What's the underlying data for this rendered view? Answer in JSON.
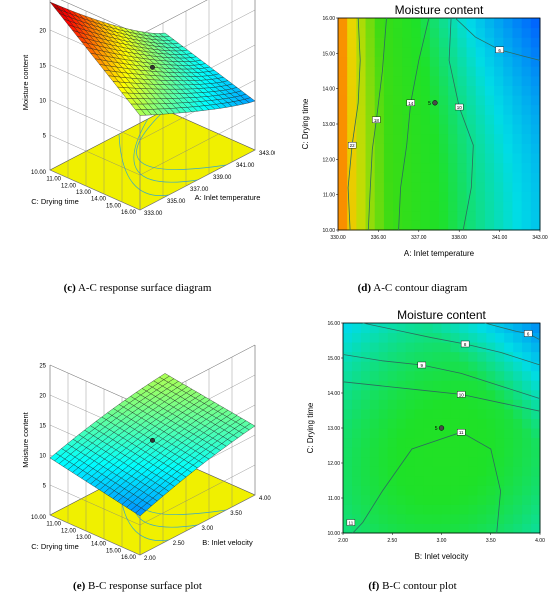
{
  "captions": [
    {
      "letter": "(c)",
      "text": "A-C response surface diagram"
    },
    {
      "letter": "(d)",
      "text": "A-C contour diagram"
    },
    {
      "letter": "(e)",
      "text": "B-C response surface plot"
    },
    {
      "letter": "(f)",
      "text": "B-C contour plot"
    }
  ],
  "colors": {
    "gridline": "#808080",
    "floor": "#f0f000",
    "contour_line": "#2c6b5f"
  },
  "chart_data": [
    {
      "type": "surface",
      "id": "c",
      "zlabel": "Moisture content",
      "xlabel": "C: Drying time",
      "ylabel": "A: Inlet temperature",
      "x_ticks": [
        "10.00",
        "11.00",
        "12.00",
        "13.00",
        "14.00",
        "15.00",
        "16.00"
      ],
      "y_ticks": [
        "333.00",
        "335.00",
        "337.00",
        "339.00",
        "341.00",
        "343.00"
      ],
      "z_ticks": [
        "5",
        "10",
        "15",
        "20",
        "25"
      ],
      "zlim": [
        0,
        25
      ]
    },
    {
      "type": "contour",
      "id": "d",
      "title": "Moisture content",
      "xlabel": "A: Inlet temperature",
      "ylabel": "C: Drying time",
      "x_ticks": [
        "330.00",
        "336.00",
        "337.00",
        "338.00",
        "341.00",
        "343.00"
      ],
      "y_ticks": [
        "10.00",
        "11.00",
        "12.00",
        "13.00",
        "14.00",
        "15.00",
        "16.00"
      ],
      "contour_labels": [
        "22",
        "18",
        "14",
        "10",
        "6"
      ],
      "design_point_label": "5"
    },
    {
      "type": "surface",
      "id": "e",
      "zlabel": "Moisture content",
      "xlabel": "C: Drying time",
      "ylabel": "B: Inlet velocity",
      "x_ticks": [
        "10.00",
        "11.00",
        "12.00",
        "13.00",
        "14.00",
        "15.00",
        "16.00"
      ],
      "y_ticks": [
        "2.00",
        "2.50",
        "3.00",
        "3.50",
        "4.00"
      ],
      "z_ticks": [
        "5",
        "10",
        "15",
        "20",
        "25"
      ],
      "zlim": [
        0,
        25
      ]
    },
    {
      "type": "contour",
      "id": "f",
      "title": "Moisture content",
      "xlabel": "B: Inlet velocity",
      "ylabel": "C: Drying time",
      "x_ticks": [
        "2.00",
        "2.50",
        "3.00",
        "3.50",
        "4.00"
      ],
      "y_ticks": [
        "10.00",
        "11.00",
        "12.00",
        "13.00",
        "14.00",
        "15.00",
        "16.00"
      ],
      "contour_labels": [
        "6",
        "8",
        "9",
        "10",
        "11"
      ],
      "design_point_label": "5"
    }
  ]
}
